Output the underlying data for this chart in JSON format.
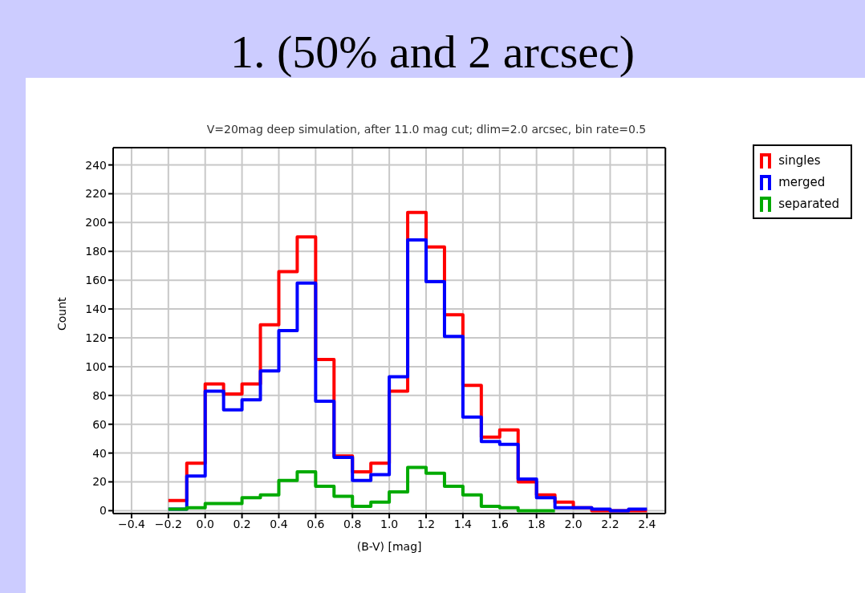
{
  "chart_data": {
    "type": "histogram",
    "title": "1. (50% and 2 arcsec)",
    "subtitle": "V=20mag deep simulation, after 11.0 mag cut; dlim=2.0 arcsec, bin rate=0.5",
    "xlabel": "(B-V) [mag]",
    "ylabel": "Count",
    "bins": [
      -0.2,
      -0.1,
      0,
      0.1,
      0.2,
      0.3,
      0.4,
      0.5,
      0.6,
      0.7,
      0.8,
      0.9,
      1.0,
      1.1,
      1.2,
      1.3,
      1.4,
      1.5,
      1.6,
      1.7,
      1.8,
      1.9,
      2.0,
      2.1,
      2.2,
      2.3,
      2.4
    ],
    "series": [
      {
        "name": "singles",
        "color": "#ff0000",
        "values": [
          7,
          33,
          88,
          81,
          88,
          129,
          166,
          190,
          105,
          38,
          27,
          33,
          83,
          207,
          183,
          136,
          87,
          51,
          56,
          20,
          11,
          6,
          2,
          0,
          0,
          0
        ]
      },
      {
        "name": "merged",
        "color": "#0000ff",
        "values": [
          1,
          24,
          83,
          70,
          77,
          97,
          125,
          158,
          76,
          37,
          21,
          25,
          93,
          188,
          159,
          121,
          65,
          48,
          46,
          22,
          9,
          2,
          2,
          1,
          0,
          1
        ]
      },
      {
        "name": "separated",
        "color": "#00aa00",
        "bins": [
          -0.2,
          -0.1,
          0,
          0.1,
          0.2,
          0.3,
          0.4,
          0.5,
          0.6,
          0.7,
          0.8,
          0.9,
          1.0,
          1.1,
          1.2,
          1.3,
          1.4,
          1.5,
          1.6,
          1.7,
          1.8,
          1.9
        ],
        "values": [
          1,
          2,
          5,
          5,
          9,
          11,
          21,
          27,
          17,
          10,
          3,
          6,
          13,
          30,
          26,
          17,
          11,
          3,
          2,
          0,
          0
        ]
      }
    ],
    "xlim": [
      -0.5,
      2.5
    ],
    "ylim": [
      -2,
      252
    ],
    "xticks": [
      {
        "value": -0.4,
        "label": "−0.4"
      },
      {
        "value": -0.2,
        "label": "−0.2"
      },
      {
        "value": 0,
        "label": "0.0"
      },
      {
        "value": 0.2,
        "label": "0.2"
      },
      {
        "value": 0.4,
        "label": "0.4"
      },
      {
        "value": 0.6,
        "label": "0.6"
      },
      {
        "value": 0.8,
        "label": "0.8"
      },
      {
        "value": 1,
        "label": "1.0"
      },
      {
        "value": 1.2,
        "label": "1.2"
      },
      {
        "value": 1.4,
        "label": "1.4"
      },
      {
        "value": 1.6,
        "label": "1.6"
      },
      {
        "value": 1.8,
        "label": "1.8"
      },
      {
        "value": 2,
        "label": "2.0"
      },
      {
        "value": 2.2,
        "label": "2.2"
      },
      {
        "value": 2.4,
        "label": "2.4"
      }
    ],
    "yticks": [
      0,
      20,
      40,
      60,
      80,
      100,
      120,
      140,
      160,
      180,
      200,
      220,
      240
    ],
    "grid": true,
    "legend": "top right"
  }
}
